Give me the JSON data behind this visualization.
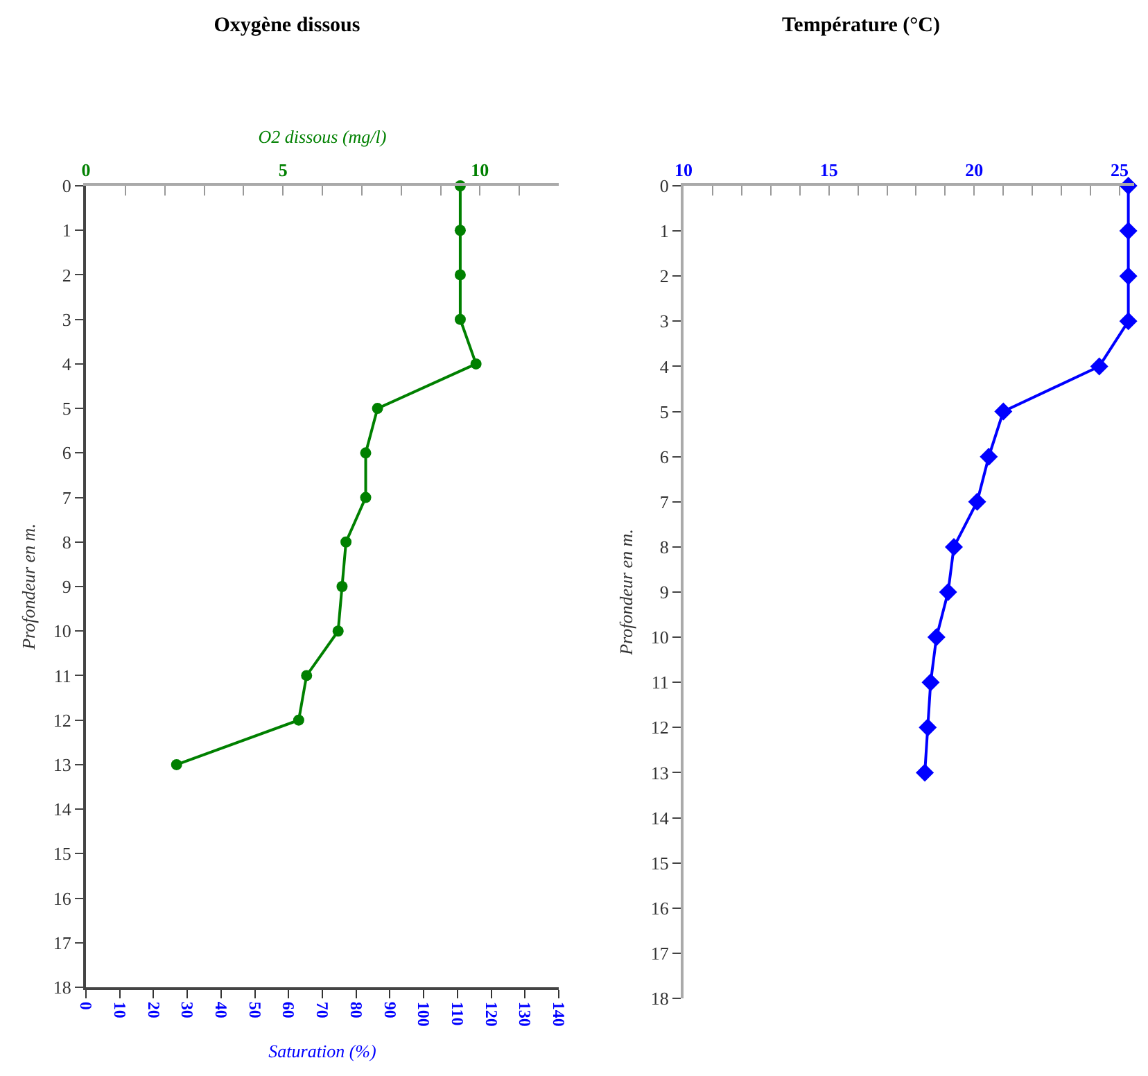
{
  "chart_data": [
    {
      "type": "line",
      "title": "Oxygène dissous",
      "xlabel": "O2 dissous (mg/l)",
      "x2label": "Saturation (%)",
      "ylabel": "Profondeur en m.",
      "xlim": [
        0,
        12
      ],
      "xticks": [
        0,
        {
          "value": 1,
          "label": null
        },
        {
          "value": 2,
          "label": null
        },
        {
          "value": 3,
          "label": null
        },
        {
          "value": 4,
          "label": null
        },
        5,
        {
          "value": 6,
          "label": null
        },
        {
          "value": 7,
          "label": null
        },
        {
          "value": 8,
          "label": null
        },
        {
          "value": 9,
          "label": null
        },
        10,
        {
          "value": 11,
          "label": null
        },
        {
          "value": 12,
          "label": null
        }
      ],
      "x2lim": [
        0,
        140
      ],
      "x2ticks": [
        0,
        10,
        20,
        30,
        40,
        50,
        60,
        70,
        80,
        90,
        100,
        110,
        120,
        130,
        140
      ],
      "ylim": [
        18,
        0
      ],
      "yticks": [
        0,
        1,
        2,
        3,
        4,
        5,
        6,
        7,
        8,
        9,
        10,
        11,
        12,
        13,
        14,
        15,
        16,
        17,
        18
      ],
      "grid": false,
      "marker": "circle",
      "line_style": "solid",
      "series": [
        {
          "color": "#008000",
          "x": [
            9.5,
            9.5,
            9.5,
            9.5,
            9.9,
            7.4,
            7.1,
            7.1,
            6.6,
            6.5,
            6.4,
            5.6,
            5.4,
            2.3
          ],
          "values": [
            0,
            1,
            2,
            3,
            4,
            5,
            6,
            7,
            8,
            9,
            10,
            11,
            12,
            13
          ]
        }
      ]
    },
    {
      "type": "line",
      "title": "Température (°C)",
      "ylabel": "Profondeur en m.",
      "xlim": [
        10,
        25.5
      ],
      "xticks": [
        10,
        {
          "value": 11,
          "label": null
        },
        {
          "value": 12,
          "label": null
        },
        {
          "value": 13,
          "label": null
        },
        {
          "value": 14,
          "label": null
        },
        15,
        {
          "value": 16,
          "label": null
        },
        {
          "value": 17,
          "label": null
        },
        {
          "value": 18,
          "label": null
        },
        {
          "value": 19,
          "label": null
        },
        20,
        {
          "value": 21,
          "label": null
        },
        {
          "value": 22,
          "label": null
        },
        {
          "value": 23,
          "label": null
        },
        {
          "value": 24,
          "label": null
        },
        25
      ],
      "ylim": [
        18,
        0
      ],
      "yticks": [
        0,
        1,
        2,
        3,
        4,
        5,
        6,
        7,
        8,
        9,
        10,
        11,
        12,
        13,
        14,
        15,
        16,
        17,
        18
      ],
      "grid": false,
      "marker": "diamond",
      "line_style": "solid",
      "series": [
        {
          "color": "#0000ff",
          "x": [
            25.3,
            25.3,
            25.3,
            25.3,
            24.3,
            21.0,
            20.5,
            20.1,
            19.3,
            19.1,
            18.7,
            18.5,
            18.4,
            18.3
          ],
          "values": [
            0,
            1,
            2,
            3,
            4,
            5,
            6,
            7,
            8,
            9,
            10,
            11,
            12,
            13
          ]
        }
      ]
    }
  ]
}
